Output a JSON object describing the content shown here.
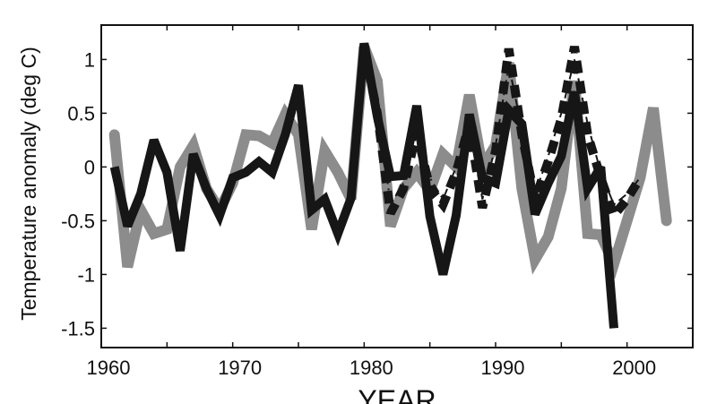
{
  "chart_data": {
    "type": "line",
    "title": "",
    "xlabel": "YEAR",
    "ylabel": "Temperature anomaly (deg C)",
    "xlim": [
      1960,
      2005
    ],
    "ylim": [
      -1.68,
      1.32
    ],
    "xticks": [
      1960,
      1965,
      1970,
      1975,
      1980,
      1985,
      1990,
      1995,
      2000,
      2005
    ],
    "xtick_labels": [
      "1960",
      "1970",
      "1980",
      "1990",
      "2000"
    ],
    "xtick_label_values": [
      1960,
      1970,
      1980,
      1990,
      2000
    ],
    "yticks": [
      1,
      0.5,
      0,
      -0.5,
      -1,
      -1.5
    ],
    "ytick_labels": [
      "1",
      "0.5",
      "0",
      "-0.5",
      "-1",
      "-1.5"
    ],
    "grid": false,
    "legend": "none",
    "series": [
      {
        "style": "solid-thick-gray",
        "color": "#8c8c8c",
        "x": [
          1961,
          1962,
          1963,
          1964,
          1965,
          1966,
          1967,
          1968,
          1969,
          1970,
          1971,
          1972,
          1973,
          1974,
          1975,
          1976,
          1977,
          1978,
          1979,
          1980,
          1981,
          1982,
          1983,
          1984,
          1985,
          1986,
          1987,
          1988,
          1989,
          1990,
          1991,
          1992,
          1993,
          1994,
          1995,
          1996,
          1997,
          1998,
          1999,
          2000,
          2001,
          2002,
          2003
        ],
        "y": [
          0.3,
          -0.93,
          -0.4,
          -0.62,
          -0.58,
          0.0,
          0.2,
          -0.2,
          -0.4,
          -0.15,
          0.3,
          0.29,
          0.22,
          0.49,
          0.3,
          -0.58,
          0.15,
          -0.05,
          -0.3,
          1.12,
          0.8,
          -0.55,
          -0.2,
          -0.05,
          -0.22,
          0.12,
          0.0,
          0.67,
          0.0,
          0.2,
          0.97,
          -0.2,
          -0.86,
          -0.65,
          -0.2,
          0.8,
          -0.62,
          -0.63,
          -0.9,
          -0.5,
          -0.1,
          0.55,
          -0.5
        ]
      },
      {
        "style": "solid-thick-black",
        "color": "#161616",
        "x": [
          1961,
          1962,
          1963,
          1964,
          1965,
          1966,
          1967,
          1968,
          1969,
          1970,
          1971,
          1972,
          1973,
          1974,
          1975,
          1976,
          1977,
          1978,
          1979,
          1980,
          1981,
          1982,
          1983,
          1984,
          1985,
          1986,
          1987,
          1988,
          1989,
          1990,
          1991,
          1992,
          1993,
          1994,
          1995,
          1996,
          1997,
          1998,
          1999
        ],
        "y": [
          0.0,
          -0.55,
          -0.25,
          0.25,
          -0.05,
          -0.78,
          0.12,
          -0.2,
          -0.45,
          -0.1,
          -0.05,
          0.05,
          -0.05,
          0.3,
          0.76,
          -0.4,
          -0.3,
          -0.62,
          -0.29,
          1.15,
          0.47,
          -0.09,
          -0.08,
          0.57,
          -0.46,
          -1.0,
          -0.45,
          0.49,
          -0.1,
          -0.15,
          0.53,
          0.4,
          -0.44,
          -0.15,
          0.1,
          0.7,
          -0.2,
          0.0,
          -1.5
        ]
      },
      {
        "style": "dashed-thick-black",
        "color": "#161616",
        "x": [
          1980,
          1981,
          1982,
          1983,
          1984,
          1985,
          1986,
          1987,
          1988,
          1989,
          1990,
          1991,
          1992,
          1993,
          1994,
          1995,
          1996,
          1997,
          1998,
          1999,
          2000,
          2001
        ],
        "y": [
          1.1,
          0.5,
          -0.43,
          -0.2,
          0.33,
          -0.2,
          -0.35,
          -0.05,
          0.4,
          -0.38,
          0.15,
          1.1,
          0.3,
          -0.3,
          0.05,
          0.45,
          1.12,
          0.3,
          -0.1,
          -0.45,
          -0.3,
          -0.1
        ]
      },
      {
        "style": "dashdot-thin-black",
        "color": "#161616",
        "x": [
          1980,
          1981,
          1982,
          1983,
          1984,
          1985,
          1986,
          1987,
          1988,
          1989,
          1990,
          1991,
          1992,
          1993,
          1994,
          1995,
          1996,
          1997,
          1998,
          1999,
          2000,
          2001
        ],
        "y": [
          1.0,
          0.6,
          -0.35,
          -0.15,
          0.3,
          -0.1,
          -0.3,
          0.0,
          0.35,
          -0.3,
          0.2,
          0.95,
          0.35,
          -0.25,
          0.1,
          0.5,
          1.0,
          0.4,
          -0.05,
          -0.35,
          -0.25,
          -0.1
        ]
      }
    ]
  }
}
